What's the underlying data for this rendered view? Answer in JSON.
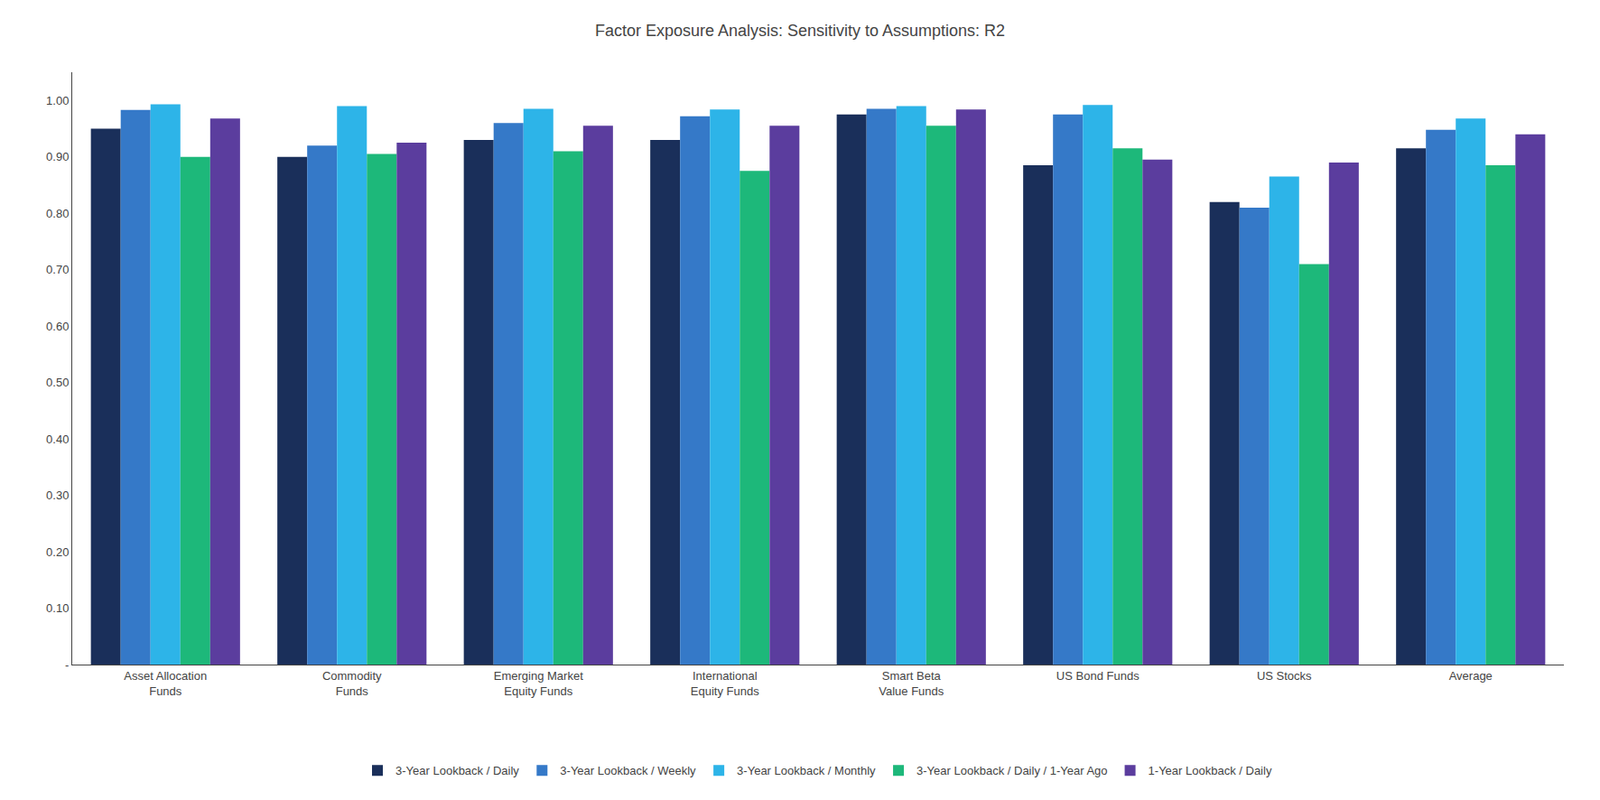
{
  "chart_data": {
    "type": "bar",
    "title": "Factor Exposure Analysis: Sensitivity to Assumptions: R2",
    "categories": [
      "Asset Allocation\nFunds",
      "Commodity\nFunds",
      "Emerging Market\nEquity Funds",
      "International\nEquity Funds",
      "Smart Beta\nValue Funds",
      "US Bond Funds",
      "US Stocks",
      "Average"
    ],
    "series": [
      {
        "name": "3-Year Lookback / Daily",
        "color": "#1a2f5a",
        "values": [
          0.95,
          0.9,
          0.93,
          0.93,
          0.975,
          0.885,
          0.82,
          0.915
        ]
      },
      {
        "name": "3-Year Lookback / Weekly",
        "color": "#3579c8",
        "values": [
          0.983,
          0.92,
          0.96,
          0.972,
          0.985,
          0.975,
          0.81,
          0.948
        ]
      },
      {
        "name": "3-Year Lookback / Monthly",
        "color": "#2db4e8",
        "values": [
          0.993,
          0.99,
          0.985,
          0.984,
          0.99,
          0.992,
          0.865,
          0.968
        ]
      },
      {
        "name": "3-Year Lookback / Daily / 1-Year Ago",
        "color": "#1db87a",
        "values": [
          0.9,
          0.905,
          0.91,
          0.875,
          0.955,
          0.915,
          0.71,
          0.885
        ]
      },
      {
        "name": "1-Year Lookback / Daily",
        "color": "#5b3d9e",
        "values": [
          0.968,
          0.925,
          0.955,
          0.955,
          0.984,
          0.895,
          0.89,
          0.94
        ]
      }
    ],
    "ylim": [
      0,
      1.05
    ],
    "yticks": [
      {
        "value": 0,
        "label": "-"
      },
      {
        "value": 0.1,
        "label": "0.10"
      },
      {
        "value": 0.2,
        "label": "0.20"
      },
      {
        "value": 0.3,
        "label": "0.30"
      },
      {
        "value": 0.4,
        "label": "0.40"
      },
      {
        "value": 0.5,
        "label": "0.50"
      },
      {
        "value": 0.6,
        "label": "0.60"
      },
      {
        "value": 0.7,
        "label": "0.70"
      },
      {
        "value": 0.8,
        "label": "0.80"
      },
      {
        "value": 0.9,
        "label": "0.90"
      },
      {
        "value": 1.0,
        "label": "1.00"
      }
    ],
    "grid": false,
    "legend": "bottom"
  }
}
